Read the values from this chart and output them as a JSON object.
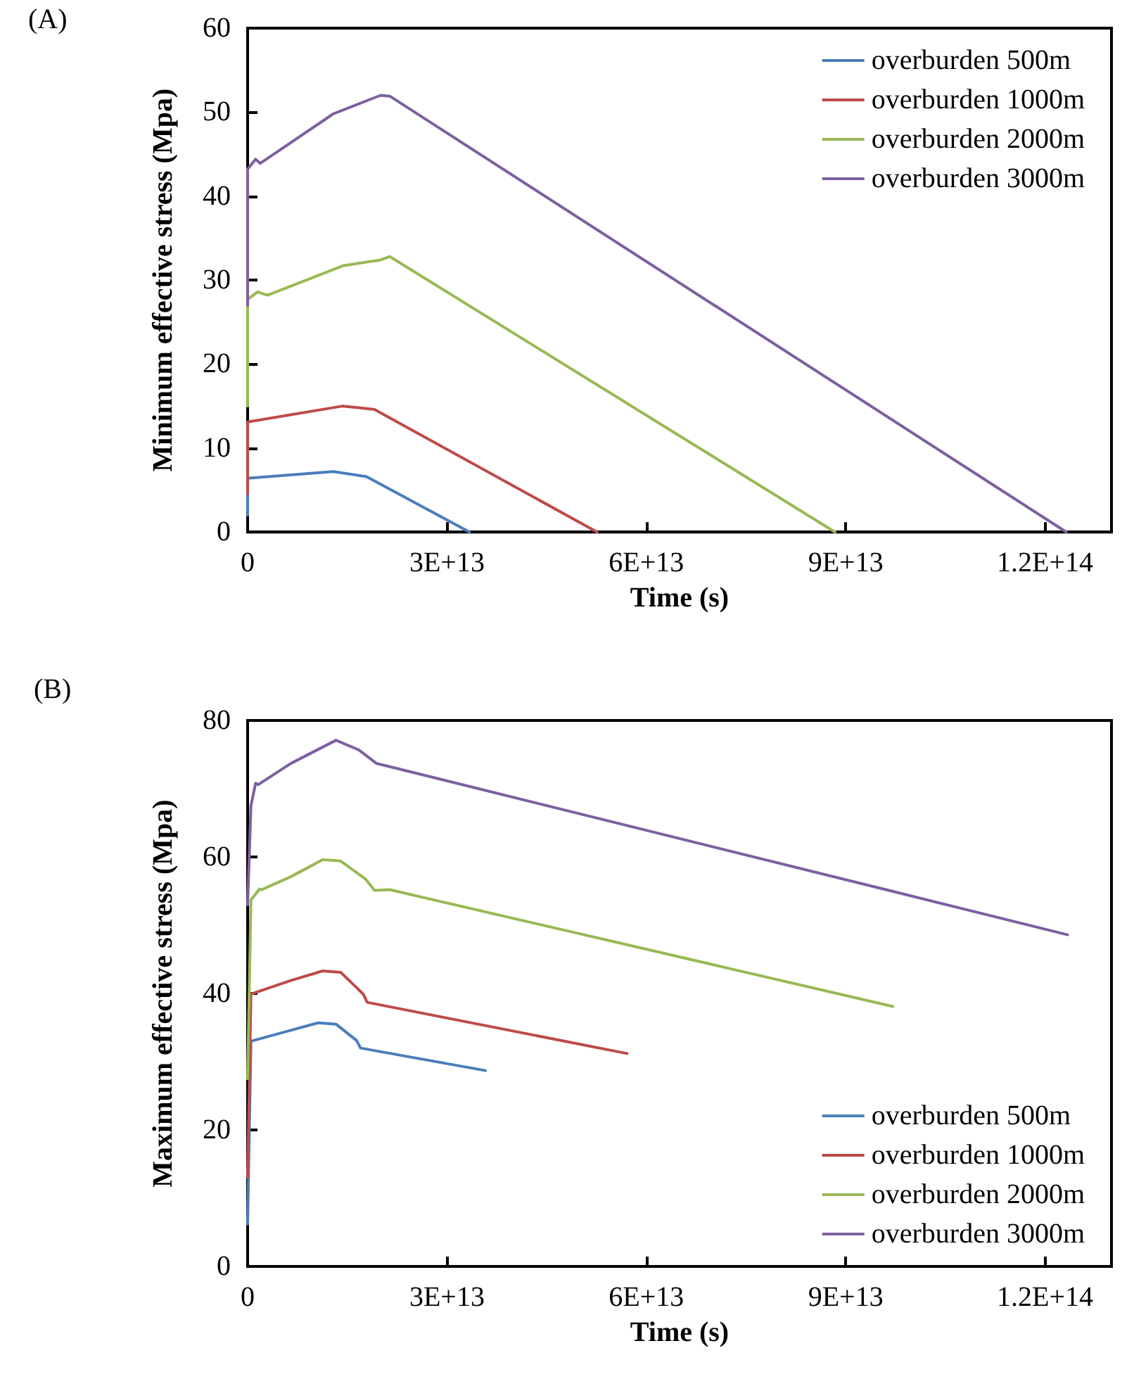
{
  "chart_data": [
    {
      "type": "line",
      "xlabel": "Time (s)",
      "ylabel": "Minimum effective stress (Mpa)",
      "annotations": [
        "(A)"
      ],
      "xlim": [
        0,
        130000000000000.0
      ],
      "xticks": [
        0,
        {
          "value": 30000000000000.0,
          "label": "3E+13"
        },
        {
          "value": 60000000000000.0,
          "label": "6E+13"
        },
        {
          "value": 90000000000000.0,
          "label": "9E+13"
        },
        {
          "value": 120000000000000.0,
          "label": "1.2E+14"
        }
      ],
      "ylim": [
        0,
        60
      ],
      "yticks": [
        0,
        10,
        20,
        30,
        40,
        50,
        60
      ],
      "grid": false,
      "legend": "top right",
      "marker": "none",
      "line_style": "solid",
      "series": [
        {
          "name": "overburden 500m",
          "color": "#4a7ebb",
          "x": [
            0,
            0,
            12900000000000.0,
            17900000000000.0,
            33400000000000.0
          ],
          "values": [
            2,
            6.4,
            7.2,
            6.6,
            0
          ]
        },
        {
          "name": "overburden 1000m",
          "color": "#be4b48",
          "x": [
            0,
            0,
            14300000000000.0,
            19100000000000.0,
            52600000000000.0
          ],
          "values": [
            4.5,
            13.1,
            15.0,
            14.6,
            0
          ]
        },
        {
          "name": "overburden 2000m",
          "color": "#98b954",
          "x": [
            0,
            0,
            1500000000000.0,
            3000000000000.0,
            14300000000000.0,
            20000000000000.0,
            21400000000000.0,
            88400000000000.0
          ],
          "values": [
            15,
            27.7,
            28.6,
            28.2,
            31.7,
            32.4,
            32.8,
            0
          ]
        },
        {
          "name": "overburden 3000m",
          "color": "#7d60a0",
          "x": [
            0,
            0,
            1200000000000.0,
            1900000000000.0,
            12900000000000.0,
            20000000000000.0,
            21400000000000.0,
            123200000000000.0
          ],
          "values": [
            27,
            43.2,
            44.4,
            43.9,
            49.8,
            52.0,
            51.9,
            0
          ]
        }
      ]
    },
    {
      "type": "line",
      "xlabel": "Time (s)",
      "ylabel": "Maximum effective stress (Mpa)",
      "annotations": [
        "(B)"
      ],
      "xlim": [
        0,
        130000000000000.0
      ],
      "xticks": [
        0,
        {
          "value": 30000000000000.0,
          "label": "3E+13"
        },
        {
          "value": 60000000000000.0,
          "label": "6E+13"
        },
        {
          "value": 90000000000000.0,
          "label": "9E+13"
        },
        {
          "value": 120000000000000.0,
          "label": "1.2E+14"
        }
      ],
      "ylim": [
        0,
        80
      ],
      "yticks": [
        0,
        20,
        40,
        60,
        80
      ],
      "grid": false,
      "legend": "bottom right",
      "marker": "none",
      "line_style": "solid",
      "series": [
        {
          "name": "overburden 500m",
          "color": "#4a7ebb",
          "x": [
            0,
            500000000000.0,
            6500000000000.0,
            10600000000000.0,
            13300000000000.0,
            16400000000000.0,
            17000000000000.0,
            35800000000000.0
          ],
          "values": [
            6.2,
            33.0,
            34.6,
            35.7,
            35.5,
            33.1,
            32.0,
            28.7
          ]
        },
        {
          "name": "overburden 1000m",
          "color": "#be4b48",
          "x": [
            0,
            500000000000.0,
            6500000000000.0,
            11300000000000.0,
            14000000000000.0,
            17400000000000.0,
            18000000000000.0,
            57100000000000.0
          ],
          "values": [
            13.1,
            39.9,
            41.9,
            43.3,
            43.1,
            39.9,
            38.7,
            31.2
          ]
        },
        {
          "name": "overburden 2000m",
          "color": "#98b954",
          "x": [
            0,
            500000000000.0,
            1800000000000.0,
            2100000000000.0,
            6500000000000.0,
            11300000000000.0,
            14000000000000.0,
            17700000000000.0,
            19100000000000.0,
            21400000000000.0,
            97100000000000.0
          ],
          "values": [
            27.5,
            53.7,
            55.3,
            55.2,
            57.1,
            59.6,
            59.4,
            56.8,
            55.1,
            55.2,
            38.1
          ]
        },
        {
          "name": "overburden 3000m",
          "color": "#7d60a0",
          "x": [
            0,
            500000000000.0,
            1200000000000.0,
            1600000000000.0,
            6500000000000.0,
            13300000000000.0,
            16700000000000.0,
            19400000000000.0,
            21100000000000.0,
            123400000000000.0
          ],
          "values": [
            53,
            67.5,
            70.8,
            70.6,
            73.7,
            77.1,
            75.7,
            73.7,
            73.3,
            48.6
          ]
        }
      ]
    }
  ]
}
